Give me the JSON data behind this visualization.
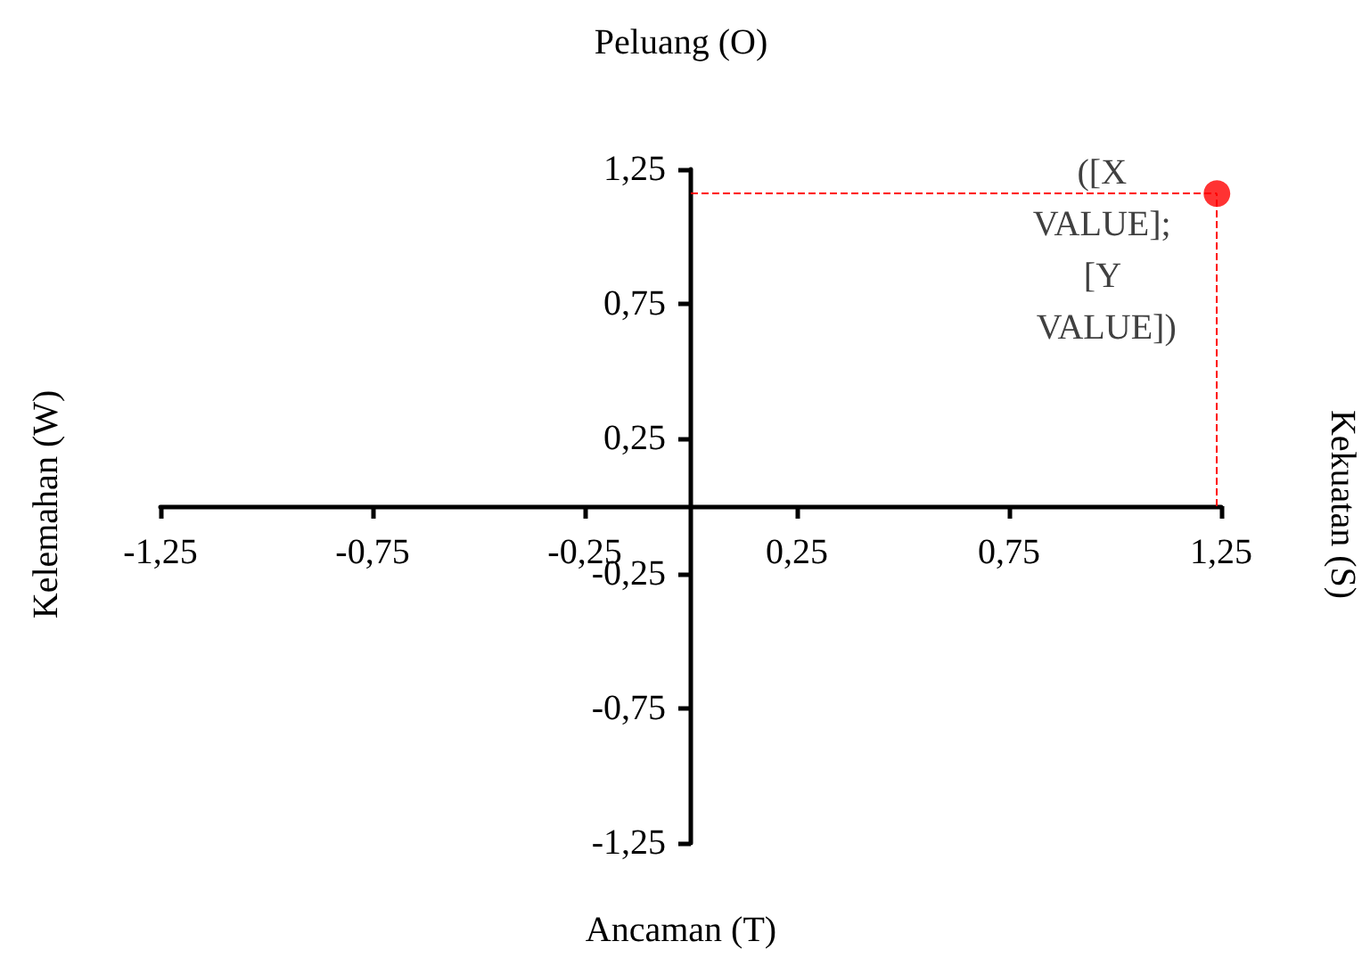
{
  "chart_data": {
    "type": "scatter",
    "title": "Peluang (O)",
    "xlabel": "Ancaman (T)",
    "ylabel": "Kelemahan (W)",
    "y2label": "Kekuatan (S)",
    "x": [
      1.24
    ],
    "series": [
      {
        "color": "#ff0000",
        "values": [
          1.16
        ]
      }
    ],
    "marker": "circle",
    "xlim": [
      -1.25,
      1.25
    ],
    "xticks": [
      {
        "value": -1.25,
        "label": "-1,25"
      },
      {
        "value": -0.75,
        "label": "-0,75"
      },
      {
        "value": -0.25,
        "label": "-0,25"
      },
      {
        "value": 0.25,
        "label": "0,25"
      },
      {
        "value": 0.75,
        "label": "0,75"
      },
      {
        "value": 1.25,
        "label": "1,25"
      }
    ],
    "ylim": [
      -1.25,
      1.25
    ],
    "yticks": [
      {
        "value": -1.25,
        "label": "-1,25"
      },
      {
        "value": -0.75,
        "label": "-0,75"
      },
      {
        "value": -0.25,
        "label": "-0,25"
      },
      {
        "value": 0.25,
        "label": "0,25"
      },
      {
        "value": 0.75,
        "label": "0,75"
      },
      {
        "value": 1.25,
        "label": "1,25"
      }
    ],
    "ref_lines": [
      {
        "axis": "x",
        "value": 1.24,
        "color": "#ff0000",
        "line_style": "dashed"
      },
      {
        "axis": "y",
        "value": 1.16,
        "color": "#ff0000",
        "line_style": "dashed"
      }
    ],
    "annotations": [
      {
        "text": "([X VALUE]; [Y VALUE])",
        "x": 1.24,
        "y": 1.16
      }
    ],
    "grid": false
  }
}
